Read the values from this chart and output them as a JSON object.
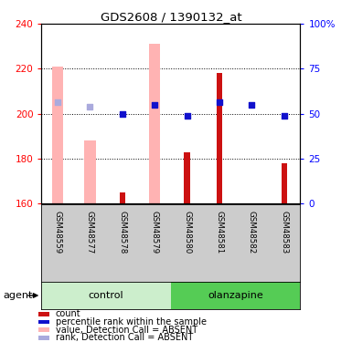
{
  "title": "GDS2608 / 1390132_at",
  "samples": [
    "GSM48559",
    "GSM48577",
    "GSM48578",
    "GSM48579",
    "GSM48580",
    "GSM48581",
    "GSM48582",
    "GSM48583"
  ],
  "ylim_left": [
    160,
    240
  ],
  "ylim_right": [
    0,
    100
  ],
  "yticks_left": [
    160,
    180,
    200,
    220,
    240
  ],
  "yticks_right": [
    0,
    25,
    50,
    75,
    100
  ],
  "ytick_labels_right": [
    "0",
    "25",
    "50",
    "75",
    "100%"
  ],
  "baseline": 160,
  "red_bars": [
    null,
    null,
    165,
    null,
    183,
    218,
    null,
    178
  ],
  "pink_bars": [
    221,
    188,
    null,
    231,
    null,
    null,
    null,
    null
  ],
  "blue_squares": [
    null,
    null,
    200,
    204,
    199,
    205,
    204,
    199
  ],
  "light_blue_squares": [
    205,
    203,
    null,
    null,
    null,
    null,
    null,
    null
  ],
  "red_bar_color": "#cc1111",
  "pink_bar_color": "#ffb3b3",
  "blue_sq_color": "#1111cc",
  "light_blue_sq_color": "#aaaadd",
  "pink_bar_width": 0.35,
  "red_bar_width": 0.18,
  "sq_size": 18,
  "grid_color": "black",
  "bg_xlabel": "#cccccc",
  "bg_control": "#cceecc",
  "bg_olanzapine": "#55cc55",
  "left_axis_color": "red",
  "right_axis_color": "blue",
  "legend_labels": [
    "count",
    "percentile rank within the sample",
    "value, Detection Call = ABSENT",
    "rank, Detection Call = ABSENT"
  ],
  "legend_colors": [
    "#cc1111",
    "#1111cc",
    "#ffb3b3",
    "#aaaadd"
  ]
}
